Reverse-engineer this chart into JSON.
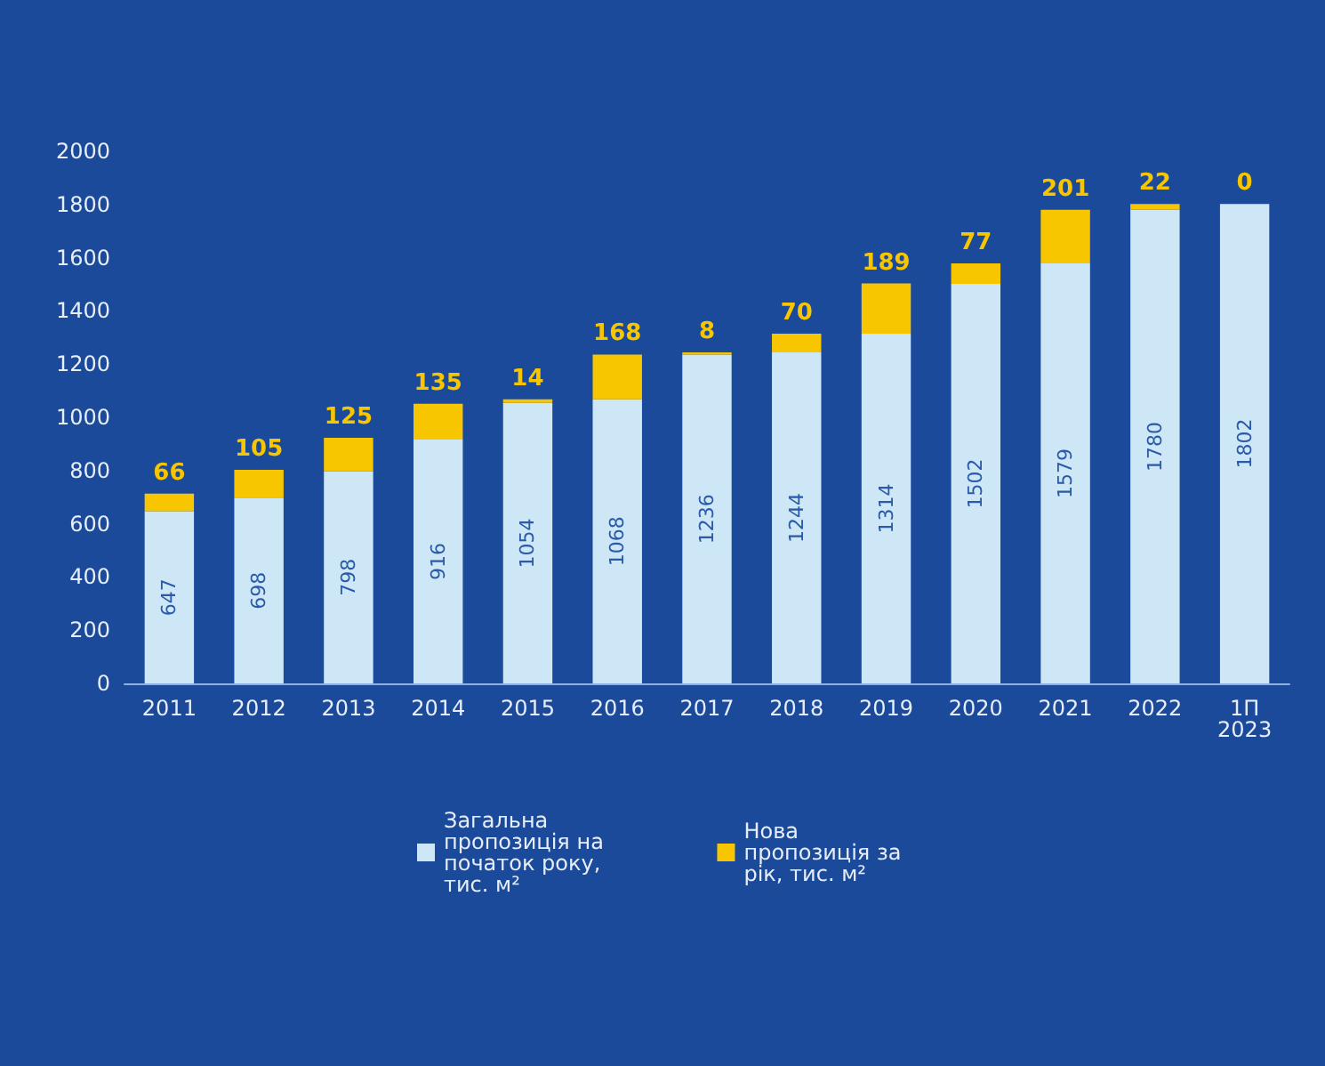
{
  "chart_data": {
    "type": "bar",
    "stacked": true,
    "categories": [
      "2011",
      "2012",
      "2013",
      "2014",
      "2015",
      "2016",
      "2017",
      "2018",
      "2019",
      "2020",
      "2021",
      "2022",
      "1П\n2023"
    ],
    "series": [
      {
        "name": "Загальна пропозиція на початок року, тис. м²",
        "color": "#cde7f6",
        "values": [
          647,
          698,
          798,
          916,
          1054,
          1068,
          1236,
          1244,
          1314,
          1502,
          1579,
          1780,
          1802
        ]
      },
      {
        "name": "Нова пропозиція за рік, тис. м²",
        "color": "#f7c600",
        "values": [
          66,
          105,
          125,
          135,
          14,
          168,
          8,
          70,
          189,
          77,
          201,
          22,
          0
        ]
      }
    ],
    "ylim": [
      0,
      2000
    ],
    "yticks": [
      0,
      200,
      400,
      600,
      800,
      1000,
      1200,
      1400,
      1600,
      1800,
      2000
    ],
    "grid": false,
    "legend": "bottom",
    "data_labels": true
  }
}
